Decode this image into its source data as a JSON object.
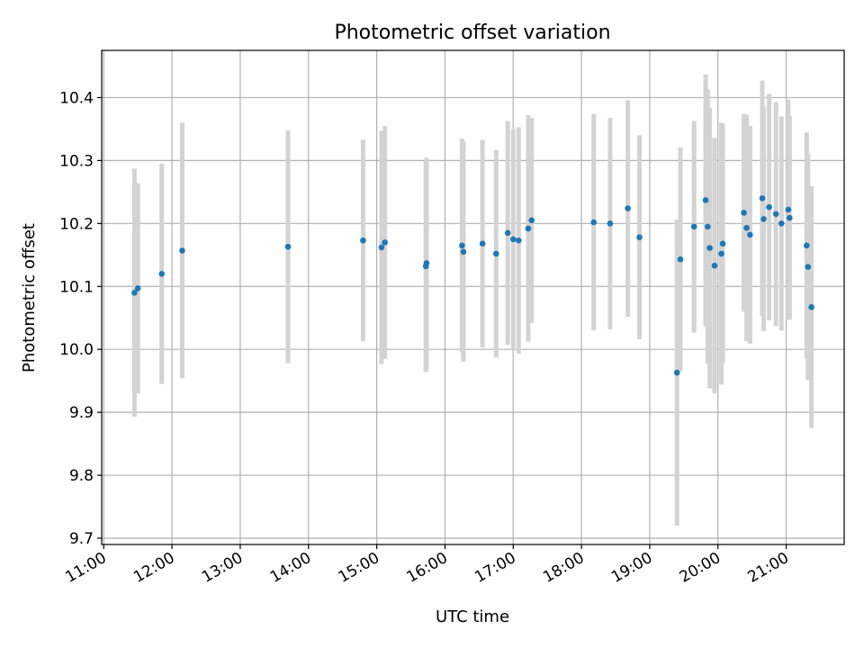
{
  "chart_data": {
    "type": "scatter",
    "title": "Photometric offset variation",
    "xlabel": "UTC time",
    "ylabel": "Photometric offset",
    "x_ticks": [
      "11:00",
      "12:00",
      "13:00",
      "14:00",
      "15:00",
      "16:00",
      "17:00",
      "18:00",
      "19:00",
      "20:00",
      "21:00"
    ],
    "x_tick_hours": [
      11,
      12,
      13,
      14,
      15,
      16,
      17,
      18,
      19,
      20,
      21
    ],
    "xlim_hours": [
      10.97,
      21.85
    ],
    "y_ticks": [
      "9.7",
      "9.8",
      "9.9",
      "10.0",
      "10.1",
      "10.2",
      "10.3",
      "10.4"
    ],
    "y_tick_values": [
      9.7,
      9.8,
      9.9,
      10.0,
      10.1,
      10.2,
      10.3,
      10.4
    ],
    "ylim": [
      9.69,
      10.475
    ],
    "grid": true,
    "series": [
      {
        "x_hours": [
          11.45,
          11.5,
          11.85,
          12.15,
          13.7,
          14.8,
          15.07,
          15.12,
          15.72,
          15.73,
          16.25,
          16.27,
          16.55,
          16.75,
          16.92,
          17.0,
          17.08,
          17.22,
          17.27,
          18.18,
          18.42,
          18.68,
          18.85,
          19.4,
          19.45,
          19.65,
          19.82,
          19.85,
          19.88,
          19.95,
          20.05,
          20.07,
          20.38,
          20.42,
          20.47,
          20.65,
          20.67,
          20.75,
          20.85,
          20.93,
          21.03,
          21.05,
          21.3,
          21.32,
          21.37
        ],
        "y": [
          10.09,
          10.097,
          10.12,
          10.157,
          10.163,
          10.173,
          10.162,
          10.17,
          10.132,
          10.137,
          10.165,
          10.155,
          10.168,
          10.152,
          10.185,
          10.175,
          10.173,
          10.192,
          10.205,
          10.202,
          10.2,
          10.224,
          10.178,
          9.963,
          10.143,
          10.195,
          10.237,
          10.195,
          10.161,
          10.133,
          10.152,
          10.168,
          10.217,
          10.193,
          10.182,
          10.24,
          10.207,
          10.226,
          10.215,
          10.2,
          10.222,
          10.209,
          10.165,
          10.131,
          10.067
        ],
        "y_err": [
          0.197,
          0.167,
          0.175,
          0.203,
          0.185,
          0.16,
          0.185,
          0.185,
          0.168,
          0.168,
          0.17,
          0.175,
          0.165,
          0.165,
          0.178,
          0.175,
          0.18,
          0.18,
          0.163,
          0.172,
          0.168,
          0.172,
          0.162,
          0.243,
          0.178,
          0.168,
          0.2,
          0.218,
          0.223,
          0.203,
          0.208,
          0.19,
          0.157,
          0.18,
          0.173,
          0.187,
          0.178,
          0.18,
          0.178,
          0.17,
          0.175,
          0.162,
          0.18,
          0.18,
          0.192
        ],
        "color": "#1f77b4",
        "error_color": "#d3d3d3"
      }
    ]
  }
}
